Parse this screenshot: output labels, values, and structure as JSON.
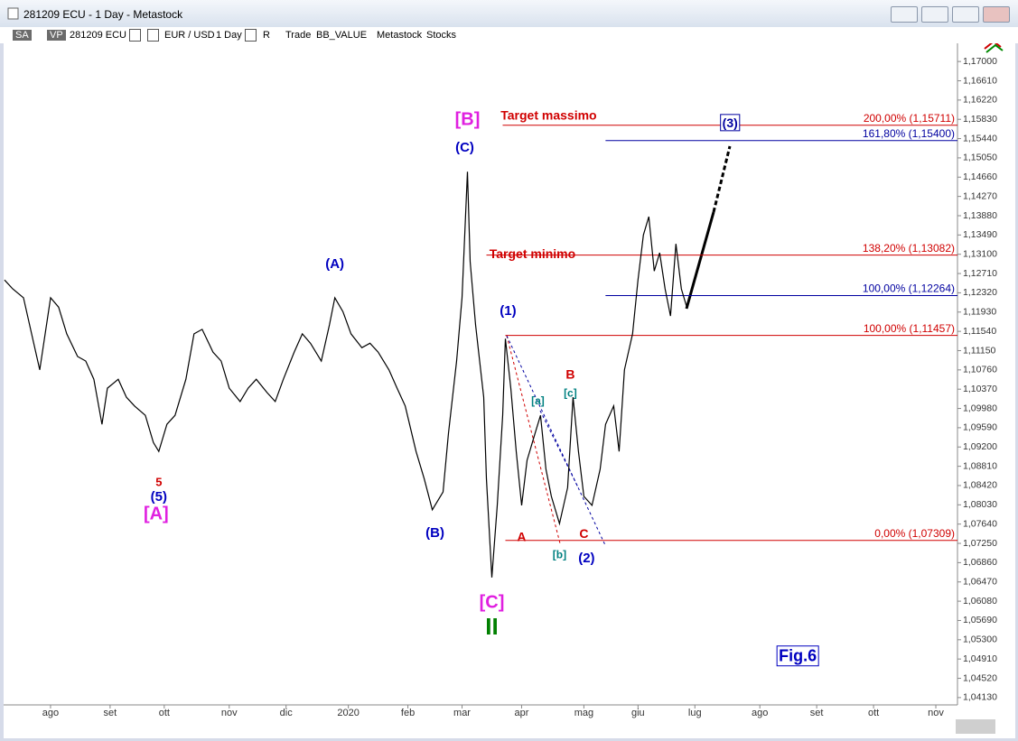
{
  "window": {
    "title": "281209 ECU - 1 Day - Metastock",
    "toolbar": [
      "SA",
      "VP",
      "281209 ECU",
      "EUR / USD",
      "1 Day",
      "R",
      "Trade",
      "BB_VALUE",
      "Metastock",
      "Stocks"
    ]
  },
  "chart_data": {
    "type": "line",
    "color": "#000000",
    "x": [
      0,
      3,
      7,
      10,
      13,
      17,
      20,
      23,
      27,
      30,
      33,
      36,
      38,
      42,
      45,
      48,
      52,
      55,
      57,
      60,
      63,
      67,
      70,
      73,
      77,
      80,
      83,
      87,
      90,
      93,
      97,
      100,
      103,
      107,
      110,
      113,
      117,
      120,
      122,
      125,
      128,
      132,
      135,
      138,
      142,
      145,
      148,
      152,
      155,
      158,
      162,
      164,
      167,
      169,
      171,
      172,
      174,
      177,
      178,
      180,
      182,
      184,
      185,
      187,
      189,
      191,
      193,
      196,
      198,
      200,
      202,
      205,
      208,
      210,
      212,
      214,
      217,
      220,
      222,
      225,
      227,
      229,
      232,
      234,
      236,
      238,
      240,
      242,
      244,
      246,
      248,
      250,
      252
    ],
    "values": [
      1.1258,
      1.124,
      1.1222,
      1.1149,
      1.1076,
      1.1222,
      1.1203,
      1.1149,
      1.1103,
      1.1094,
      1.1057,
      1.0966,
      1.1039,
      1.1057,
      1.1021,
      1.1003,
      1.0984,
      1.0929,
      1.0911,
      1.0966,
      1.0984,
      1.1057,
      1.1149,
      1.1158,
      1.1112,
      1.1094,
      1.1039,
      1.1012,
      1.1039,
      1.1057,
      1.103,
      1.1012,
      1.1057,
      1.1112,
      1.1149,
      1.113,
      1.1094,
      1.1167,
      1.1222,
      1.1194,
      1.1149,
      1.1121,
      1.113,
      1.1112,
      1.1076,
      1.1039,
      1.1003,
      1.0911,
      1.0856,
      1.0793,
      1.0829,
      1.0948,
      1.1094,
      1.1222,
      1.1477,
      1.1295,
      1.1167,
      1.1021,
      1.0856,
      1.0656,
      1.0802,
      1.0984,
      1.1139,
      1.1039,
      1.0911,
      1.0802,
      1.0893,
      1.0948,
      1.0984,
      1.0875,
      1.082,
      1.0765,
      1.0838,
      1.1021,
      1.0911,
      1.082,
      1.0802,
      1.0875,
      1.0966,
      1.1003,
      1.0911,
      1.1076,
      1.1149,
      1.1258,
      1.1349,
      1.1386,
      1.1276,
      1.1313,
      1.124,
      1.1185,
      1.1331,
      1.124,
      1.1203
    ],
    "xlim": [
      0,
      352
    ],
    "xticks": [
      {
        "value": 17,
        "label": "ago"
      },
      {
        "value": 39,
        "label": "set"
      },
      {
        "value": 59,
        "label": "ott"
      },
      {
        "value": 83,
        "label": "nov"
      },
      {
        "value": 104,
        "label": "dic"
      },
      {
        "value": 127,
        "label": "2020"
      },
      {
        "value": 149,
        "label": "feb"
      },
      {
        "value": 169,
        "label": "mar"
      },
      {
        "value": 191,
        "label": "apr"
      },
      {
        "value": 214,
        "label": "mag"
      },
      {
        "value": 234,
        "label": "giu"
      },
      {
        "value": 255,
        "label": "lug"
      },
      {
        "value": 279,
        "label": "ago"
      },
      {
        "value": 300,
        "label": "set"
      },
      {
        "value": 321,
        "label": "ott"
      },
      {
        "value": 344,
        "label": "nov"
      }
    ],
    "ylim": [
      1.04,
      1.1724
    ],
    "yticks": [
      {
        "value": 1.17,
        "label": "1,17000"
      },
      {
        "value": 1.1661,
        "label": "1,16610"
      },
      {
        "value": 1.1622,
        "label": "1,16220"
      },
      {
        "value": 1.1583,
        "label": "1,15830"
      },
      {
        "value": 1.1544,
        "label": "1,15440"
      },
      {
        "value": 1.1505,
        "label": "1,15050"
      },
      {
        "value": 1.1466,
        "label": "1,14660"
      },
      {
        "value": 1.1427,
        "label": "1,14270"
      },
      {
        "value": 1.1388,
        "label": "1,13880"
      },
      {
        "value": 1.1349,
        "label": "1,13490"
      },
      {
        "value": 1.131,
        "label": "1,13100"
      },
      {
        "value": 1.1271,
        "label": "1,12710"
      },
      {
        "value": 1.1232,
        "label": "1,12320"
      },
      {
        "value": 1.1193,
        "label": "1,11930"
      },
      {
        "value": 1.1154,
        "label": "1,11540"
      },
      {
        "value": 1.1115,
        "label": "1,11150"
      },
      {
        "value": 1.1076,
        "label": "1,10760"
      },
      {
        "value": 1.1037,
        "label": "1,10370"
      },
      {
        "value": 1.0998,
        "label": "1,09980"
      },
      {
        "value": 1.0959,
        "label": "1,09590"
      },
      {
        "value": 1.092,
        "label": "1,09200"
      },
      {
        "value": 1.0881,
        "label": "1,08810"
      },
      {
        "value": 1.0842,
        "label": "1,08420"
      },
      {
        "value": 1.0803,
        "label": "1,08030"
      },
      {
        "value": 1.0764,
        "label": "1,07640"
      },
      {
        "value": 1.0725,
        "label": "1,07250"
      },
      {
        "value": 1.0686,
        "label": "1,06860"
      },
      {
        "value": 1.0647,
        "label": "1,06470"
      },
      {
        "value": 1.0608,
        "label": "1,06080"
      },
      {
        "value": 1.0569,
        "label": "1,05690"
      },
      {
        "value": 1.053,
        "label": "1,05300"
      },
      {
        "value": 1.0491,
        "label": "1,04910"
      },
      {
        "value": 1.0452,
        "label": "1,04520"
      },
      {
        "value": 1.0413,
        "label": "1,04130"
      }
    ],
    "levels": [
      {
        "label": "200,00% (1,15711)",
        "value": 1.15711,
        "start": 184,
        "color": "#d00000"
      },
      {
        "label": "161,80% (1,15400)",
        "value": 1.154,
        "start": 222,
        "color": "#0000a0"
      },
      {
        "label": "138,20% (1,13082)",
        "value": 1.13082,
        "start": 178,
        "color": "#d00000"
      },
      {
        "label": "100,00% (1,12264)",
        "value": 1.12264,
        "start": 222,
        "color": "#0000a0"
      },
      {
        "label": "100,00% (1,11457)",
        "value": 1.11457,
        "start": 185,
        "color": "#d00000"
      },
      {
        "label": "0,00% (1,07309)",
        "value": 1.07309,
        "start": 185,
        "color": "#d00000"
      }
    ],
    "annotations": [
      {
        "text": "[B]",
        "x": 171,
        "y": 1.1581,
        "color": "#e020e0",
        "size": 20
      },
      {
        "text": "(C)",
        "x": 170,
        "y": 1.1525,
        "color": "#0000c0",
        "size": 15
      },
      {
        "text": "Target massimo",
        "x": 201,
        "y": 1.1589,
        "color": "#d00000",
        "size": 14
      },
      {
        "text": "(3)",
        "x": 268,
        "y": 1.1574,
        "color": "#0000a0",
        "size": 14,
        "box": true
      },
      {
        "text": "Target minimo",
        "x": 195,
        "y": 1.1309,
        "color": "#d00000",
        "size": 14
      },
      {
        "text": "(A)",
        "x": 122,
        "y": 1.1289,
        "color": "#0000c0",
        "size": 15
      },
      {
        "text": "(1)",
        "x": 186,
        "y": 1.1194,
        "color": "#0000c0",
        "size": 15
      },
      {
        "text": "B",
        "x": 209,
        "y": 1.1065,
        "color": "#d00000",
        "size": 14
      },
      {
        "text": "[c]",
        "x": 209,
        "y": 1.1028,
        "color": "#008080",
        "size": 12
      },
      {
        "text": "[a]",
        "x": 197,
        "y": 1.1012,
        "color": "#008080",
        "size": 12
      },
      {
        "text": "5",
        "x": 57,
        "y": 1.0847,
        "color": "#d00000",
        "size": 13
      },
      {
        "text": "(5)",
        "x": 57,
        "y": 1.0818,
        "color": "#0000c0",
        "size": 15
      },
      {
        "text": "[A]",
        "x": 56,
        "y": 1.0783,
        "color": "#e020e0",
        "size": 20
      },
      {
        "text": "(B)",
        "x": 159,
        "y": 1.0745,
        "color": "#0000c0",
        "size": 15
      },
      {
        "text": "A",
        "x": 191,
        "y": 1.0736,
        "color": "#d00000",
        "size": 14
      },
      {
        "text": "C",
        "x": 214,
        "y": 1.0743,
        "color": "#d00000",
        "size": 14
      },
      {
        "text": "[b]",
        "x": 205,
        "y": 1.0701,
        "color": "#008080",
        "size": 12
      },
      {
        "text": "(2)",
        "x": 215,
        "y": 1.0694,
        "color": "#0000c0",
        "size": 15
      },
      {
        "text": "[C]",
        "x": 180,
        "y": 1.0604,
        "color": "#e020e0",
        "size": 20
      },
      {
        "text": "II",
        "x": 180,
        "y": 1.0553,
        "color": "#008000",
        "size": 26
      },
      {
        "text": "Fig.6",
        "x": 293,
        "y": 1.0495,
        "color": "#0000c0",
        "size": 18,
        "box": true
      }
    ]
  }
}
